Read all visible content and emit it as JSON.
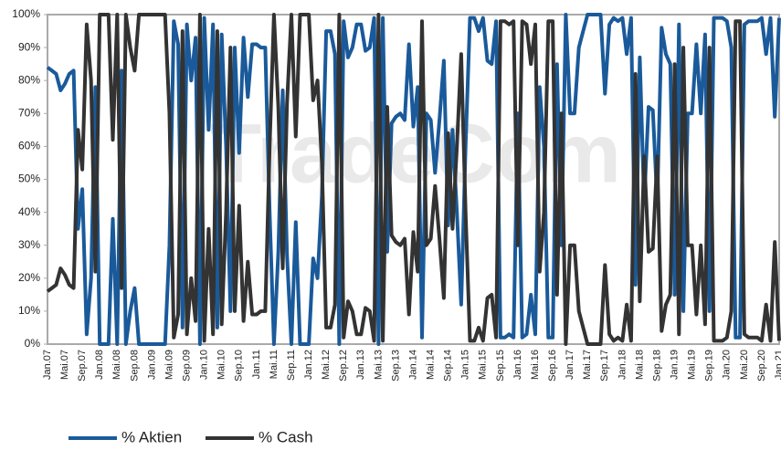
{
  "chart_data": {
    "type": "line",
    "watermark": "TradeCom",
    "categories": [
      "Jan.07",
      null,
      null,
      null,
      "Mai.07",
      null,
      null,
      null,
      "Sep.07",
      null,
      null,
      null,
      "Jan.08",
      null,
      null,
      null,
      "Mai.08",
      null,
      null,
      null,
      "Sep.08",
      null,
      null,
      null,
      "Jan.09",
      null,
      null,
      null,
      "Mai.09",
      null,
      null,
      null,
      "Sep.09",
      null,
      null,
      null,
      "Jan.10",
      null,
      null,
      null,
      "Mai.10",
      null,
      null,
      null,
      "Sep.10",
      null,
      null,
      null,
      "Jan.11",
      null,
      null,
      null,
      "Mai.11",
      null,
      null,
      null,
      "Sep.11",
      null,
      null,
      null,
      "Jan.12",
      null,
      null,
      null,
      "Mai.12",
      null,
      null,
      null,
      "Sep.12",
      null,
      null,
      null,
      "Jan.13",
      null,
      null,
      null,
      "Mai.13",
      null,
      null,
      null,
      "Sep.13",
      null,
      null,
      null,
      "Jan.14",
      null,
      null,
      null,
      "Mai.14",
      null,
      null,
      null,
      "Sep.14",
      null,
      null,
      null,
      "Jan.15",
      null,
      null,
      null,
      "Mai.15",
      null,
      null,
      null,
      "Sep.15",
      null,
      null,
      null,
      "Jan.16",
      null,
      null,
      null,
      "Mai.16",
      null,
      null,
      null,
      "Sep.16",
      null,
      null,
      null,
      "Jan.17",
      null,
      null,
      null,
      "Mai.17",
      null,
      null,
      null,
      "Sep.17",
      null,
      null,
      null,
      "Jan.18",
      null,
      null,
      null,
      "Mai.18",
      null,
      null,
      null,
      "Sep.18",
      null,
      null,
      null,
      "Jan.19",
      null,
      null,
      null,
      "Mai.19",
      null,
      null,
      null,
      "Sep.19",
      null,
      null,
      null,
      "Jan.20",
      null,
      null,
      null,
      "Mai.20",
      null,
      null,
      null,
      "Sep.20",
      null,
      null,
      null,
      "Jan.21"
    ],
    "series": [
      {
        "name": "% Aktien",
        "color": "#1a5a9a",
        "values": [
          84,
          83,
          82,
          77,
          79,
          82,
          83,
          35,
          47,
          3,
          20,
          78,
          0,
          0,
          0,
          38,
          0,
          83,
          0,
          10,
          17,
          0,
          0,
          0,
          0,
          0,
          0,
          0,
          30,
          98,
          91,
          5,
          97,
          80,
          93,
          0,
          99,
          65,
          97,
          5,
          94,
          60,
          10,
          90,
          58,
          93,
          75,
          91,
          91,
          90,
          90,
          40,
          0,
          28,
          77,
          27,
          0,
          37,
          0,
          0,
          0,
          26,
          20,
          45,
          95,
          95,
          88,
          0,
          98,
          87,
          90,
          97,
          97,
          89,
          90,
          99,
          0,
          99,
          28,
          67,
          69,
          70,
          68,
          91,
          66,
          78,
          2,
          70,
          68,
          52,
          68,
          86,
          36,
          65,
          40,
          12,
          60,
          99,
          99,
          95,
          99,
          86,
          85,
          98,
          2,
          2,
          3,
          2,
          70,
          2,
          3,
          15,
          3,
          78,
          60,
          2,
          2,
          85,
          30,
          100,
          70,
          70,
          90,
          95,
          100,
          100,
          100,
          100,
          76,
          97,
          99,
          98,
          99,
          88,
          99,
          18,
          87,
          43,
          72,
          71,
          43,
          96,
          88,
          85,
          15,
          97,
          10,
          70,
          70,
          91,
          70,
          94,
          10,
          99,
          99,
          99,
          98,
          90,
          2,
          2,
          97,
          98,
          98,
          98,
          99,
          88,
          99,
          69,
          99
        ]
      },
      {
        "name": "% Cash",
        "color": "#333333",
        "values": [
          16,
          17,
          18,
          23,
          21,
          18,
          17,
          65,
          53,
          97,
          80,
          22,
          100,
          100,
          100,
          62,
          100,
          17,
          100,
          90,
          83,
          100,
          100,
          100,
          100,
          100,
          100,
          100,
          70,
          2,
          9,
          95,
          3,
          20,
          7,
          100,
          1,
          35,
          3,
          95,
          6,
          40,
          90,
          10,
          42,
          7,
          25,
          9,
          9,
          10,
          10,
          60,
          100,
          72,
          23,
          73,
          100,
          63,
          100,
          100,
          100,
          74,
          80,
          55,
          5,
          5,
          12,
          100,
          2,
          13,
          10,
          3,
          3,
          11,
          10,
          1,
          100,
          1,
          72,
          33,
          31,
          30,
          32,
          9,
          34,
          22,
          98,
          30,
          32,
          48,
          32,
          14,
          64,
          35,
          60,
          88,
          40,
          1,
          1,
          5,
          1,
          14,
          15,
          2,
          98,
          98,
          97,
          98,
          30,
          98,
          97,
          85,
          97,
          22,
          40,
          98,
          98,
          15,
          70,
          0,
          30,
          30,
          10,
          5,
          0,
          0,
          0,
          0,
          24,
          3,
          1,
          2,
          1,
          12,
          1,
          82,
          13,
          57,
          28,
          29,
          57,
          4,
          12,
          15,
          85,
          3,
          90,
          30,
          30,
          9,
          30,
          6,
          90,
          1,
          1,
          1,
          2,
          10,
          98,
          98,
          3,
          2,
          2,
          2,
          1,
          12,
          1,
          31,
          1
        ]
      }
    ],
    "ylim": [
      0,
      100
    ],
    "yticks": [
      {
        "value": 0,
        "label": "0%"
      },
      {
        "value": 10,
        "label": "10%"
      },
      {
        "value": 20,
        "label": "20%"
      },
      {
        "value": 30,
        "label": "30%"
      },
      {
        "value": 40,
        "label": "40%"
      },
      {
        "value": 50,
        "label": "50%"
      },
      {
        "value": 60,
        "label": "60%"
      },
      {
        "value": 70,
        "label": "70%"
      },
      {
        "value": 80,
        "label": "80%"
      },
      {
        "value": 90,
        "label": "90%"
      },
      {
        "value": 100,
        "label": "100%"
      }
    ],
    "legend": "bottom-left"
  }
}
